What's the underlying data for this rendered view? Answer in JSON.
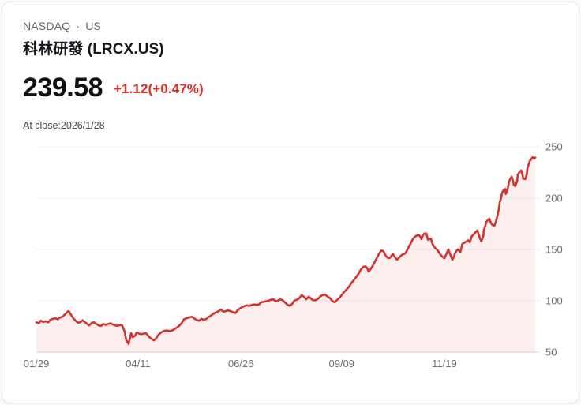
{
  "header": {
    "exchange": "NASDAQ",
    "separator": "·",
    "market": "US",
    "title": "科林研發 (LRCX.US)"
  },
  "quote": {
    "price": "239.58",
    "change": "+1.12(+0.47%)",
    "as_of": "At close:2026/1/28"
  },
  "colors": {
    "change_red": "#e02b20",
    "line_red": "#d7312c",
    "area_fill": "#d7312c",
    "area_fill_opacity": 0.08,
    "grid_line": "#e9ecef",
    "axis_line": "#d6dade",
    "axis_text": "#697077"
  },
  "chart_data": {
    "type": "area",
    "title": "LRCX.US 1-year price",
    "legend": false,
    "grid": true,
    "x_axis": {
      "labels": [
        "01/29",
        "04/11",
        "06/26",
        "09/09",
        "11/19"
      ],
      "positions": [
        0.0,
        0.204,
        0.41,
        0.612,
        0.818
      ]
    },
    "y_axis": {
      "range": [
        50,
        250
      ],
      "ticks": [
        50,
        100,
        150,
        200,
        250
      ],
      "side": "right"
    },
    "series": [
      {
        "name": "LRCX.US",
        "points": [
          [
            0.0,
            79
          ],
          [
            0.005,
            78
          ],
          [
            0.009,
            80.5
          ],
          [
            0.014,
            79.5
          ],
          [
            0.019,
            80
          ],
          [
            0.024,
            79
          ],
          [
            0.028,
            81.5
          ],
          [
            0.033,
            82.5
          ],
          [
            0.038,
            83
          ],
          [
            0.043,
            82
          ],
          [
            0.047,
            83.5
          ],
          [
            0.052,
            84.5
          ],
          [
            0.057,
            86.5
          ],
          [
            0.062,
            89
          ],
          [
            0.065,
            90
          ],
          [
            0.07,
            86
          ],
          [
            0.074,
            83
          ],
          [
            0.079,
            80.5
          ],
          [
            0.084,
            78.5
          ],
          [
            0.089,
            79.5
          ],
          [
            0.093,
            81
          ],
          [
            0.098,
            79
          ],
          [
            0.103,
            77
          ],
          [
            0.106,
            76
          ],
          [
            0.111,
            78.5
          ],
          [
            0.116,
            79
          ],
          [
            0.12,
            77.5
          ],
          [
            0.125,
            76
          ],
          [
            0.13,
            75.5
          ],
          [
            0.134,
            77.5
          ],
          [
            0.139,
            76.5
          ],
          [
            0.144,
            77.5
          ],
          [
            0.149,
            78
          ],
          [
            0.153,
            77
          ],
          [
            0.158,
            76
          ],
          [
            0.163,
            75.5
          ],
          [
            0.168,
            76.5
          ],
          [
            0.172,
            76
          ],
          [
            0.177,
            70
          ],
          [
            0.18,
            62
          ],
          [
            0.185,
            58
          ],
          [
            0.19,
            68.5
          ],
          [
            0.193,
            64.5
          ],
          [
            0.198,
            66
          ],
          [
            0.201,
            69
          ],
          [
            0.206,
            68
          ],
          [
            0.21,
            67.5
          ],
          [
            0.215,
            68
          ],
          [
            0.22,
            68.5
          ],
          [
            0.225,
            65.5
          ],
          [
            0.229,
            63.5
          ],
          [
            0.236,
            61.5
          ],
          [
            0.241,
            64
          ],
          [
            0.245,
            67
          ],
          [
            0.25,
            69
          ],
          [
            0.255,
            70.5
          ],
          [
            0.261,
            71
          ],
          [
            0.267,
            70.5
          ],
          [
            0.272,
            71
          ],
          [
            0.277,
            72.5
          ],
          [
            0.282,
            74
          ],
          [
            0.286,
            75.5
          ],
          [
            0.291,
            78
          ],
          [
            0.296,
            82
          ],
          [
            0.301,
            83
          ],
          [
            0.305,
            83.5
          ],
          [
            0.312,
            84.5
          ],
          [
            0.316,
            83
          ],
          [
            0.321,
            81.5
          ],
          [
            0.326,
            80.5
          ],
          [
            0.331,
            82.5
          ],
          [
            0.335,
            81.5
          ],
          [
            0.34,
            82
          ],
          [
            0.345,
            84
          ],
          [
            0.35,
            85.5
          ],
          [
            0.354,
            87
          ],
          [
            0.359,
            88.5
          ],
          [
            0.364,
            89.5
          ],
          [
            0.37,
            91.5
          ],
          [
            0.375,
            89.5
          ],
          [
            0.38,
            90
          ],
          [
            0.384,
            90.5
          ],
          [
            0.389,
            90
          ],
          [
            0.394,
            89
          ],
          [
            0.399,
            88
          ],
          [
            0.403,
            90.5
          ],
          [
            0.408,
            92.5
          ],
          [
            0.413,
            94
          ],
          [
            0.418,
            95
          ],
          [
            0.422,
            95.5
          ],
          [
            0.427,
            95
          ],
          [
            0.432,
            96
          ],
          [
            0.437,
            96.5
          ],
          [
            0.441,
            96
          ],
          [
            0.446,
            96.5
          ],
          [
            0.451,
            98.5
          ],
          [
            0.456,
            99
          ],
          [
            0.46,
            99.5
          ],
          [
            0.465,
            100
          ],
          [
            0.47,
            101
          ],
          [
            0.475,
            101.5
          ],
          [
            0.479,
            99.5
          ],
          [
            0.484,
            100
          ],
          [
            0.489,
            101.5
          ],
          [
            0.494,
            100.5
          ],
          [
            0.498,
            98.5
          ],
          [
            0.503,
            96.5
          ],
          [
            0.508,
            95
          ],
          [
            0.513,
            97
          ],
          [
            0.517,
            100
          ],
          [
            0.522,
            101
          ],
          [
            0.527,
            102.5
          ],
          [
            0.532,
            105.5
          ],
          [
            0.536,
            104
          ],
          [
            0.541,
            101.5
          ],
          [
            0.546,
            104
          ],
          [
            0.551,
            102
          ],
          [
            0.555,
            100.5
          ],
          [
            0.56,
            100.5
          ],
          [
            0.565,
            102
          ],
          [
            0.57,
            104.5
          ],
          [
            0.574,
            105.5
          ],
          [
            0.579,
            106
          ],
          [
            0.584,
            104
          ],
          [
            0.589,
            102.5
          ],
          [
            0.593,
            100
          ],
          [
            0.598,
            98.5
          ],
          [
            0.603,
            101
          ],
          [
            0.608,
            103
          ],
          [
            0.612,
            105.5
          ],
          [
            0.617,
            108.5
          ],
          [
            0.622,
            111
          ],
          [
            0.627,
            114
          ],
          [
            0.631,
            117
          ],
          [
            0.636,
            120
          ],
          [
            0.641,
            123
          ],
          [
            0.646,
            126.5
          ],
          [
            0.65,
            130
          ],
          [
            0.655,
            133
          ],
          [
            0.66,
            133.5
          ],
          [
            0.663,
            132
          ],
          [
            0.666,
            128.5
          ],
          [
            0.669,
            130
          ],
          [
            0.673,
            133
          ],
          [
            0.676,
            135.5
          ],
          [
            0.679,
            138.5
          ],
          [
            0.684,
            143
          ],
          [
            0.687,
            146
          ],
          [
            0.692,
            149
          ],
          [
            0.696,
            148
          ],
          [
            0.699,
            145
          ],
          [
            0.703,
            142.5
          ],
          [
            0.706,
            141.5
          ],
          [
            0.709,
            142
          ],
          [
            0.712,
            144
          ],
          [
            0.715,
            145.5
          ],
          [
            0.718,
            143
          ],
          [
            0.723,
            140
          ],
          [
            0.726,
            141.5
          ],
          [
            0.731,
            144
          ],
          [
            0.734,
            145
          ],
          [
            0.739,
            146
          ],
          [
            0.742,
            148
          ],
          [
            0.745,
            151
          ],
          [
            0.75,
            155.5
          ],
          [
            0.753,
            158.5
          ],
          [
            0.756,
            161
          ],
          [
            0.759,
            162.5
          ],
          [
            0.763,
            163.5
          ],
          [
            0.766,
            164.5
          ],
          [
            0.769,
            163
          ],
          [
            0.772,
            160
          ],
          [
            0.775,
            164
          ],
          [
            0.778,
            165.5
          ],
          [
            0.782,
            165.5
          ],
          [
            0.785,
            159.5
          ],
          [
            0.788,
            160
          ],
          [
            0.791,
            160.5
          ],
          [
            0.794,
            155.5
          ],
          [
            0.799,
            151.5
          ],
          [
            0.804,
            149.5
          ],
          [
            0.807,
            147.5
          ],
          [
            0.81,
            145
          ],
          [
            0.815,
            142.5
          ],
          [
            0.818,
            141.5
          ],
          [
            0.821,
            144.5
          ],
          [
            0.826,
            150
          ],
          [
            0.829,
            146
          ],
          [
            0.831,
            143.5
          ],
          [
            0.834,
            140
          ],
          [
            0.837,
            143
          ],
          [
            0.839,
            146
          ],
          [
            0.842,
            148.5
          ],
          [
            0.845,
            150
          ],
          [
            0.848,
            148.5
          ],
          [
            0.85,
            147.5
          ],
          [
            0.854,
            155.5
          ],
          [
            0.858,
            156.5
          ],
          [
            0.861,
            157.5
          ],
          [
            0.866,
            159
          ],
          [
            0.869,
            157
          ],
          [
            0.873,
            163
          ],
          [
            0.878,
            165.5
          ],
          [
            0.881,
            167
          ],
          [
            0.884,
            168.5
          ],
          [
            0.888,
            163
          ],
          [
            0.889,
            161
          ],
          [
            0.892,
            158
          ],
          [
            0.896,
            163
          ],
          [
            0.897,
            168.5
          ],
          [
            0.9,
            173
          ],
          [
            0.902,
            177
          ],
          [
            0.905,
            178.5
          ],
          [
            0.908,
            180
          ],
          [
            0.911,
            176
          ],
          [
            0.913,
            174.5
          ],
          [
            0.918,
            173
          ],
          [
            0.921,
            177
          ],
          [
            0.924,
            182.5
          ],
          [
            0.927,
            189
          ],
          [
            0.929,
            196
          ],
          [
            0.932,
            201
          ],
          [
            0.934,
            205.5
          ],
          [
            0.937,
            208
          ],
          [
            0.94,
            209
          ],
          [
            0.941,
            204
          ],
          [
            0.945,
            209
          ],
          [
            0.948,
            217
          ],
          [
            0.953,
            221
          ],
          [
            0.956,
            216
          ],
          [
            0.957,
            213
          ],
          [
            0.96,
            211.5
          ],
          [
            0.964,
            217
          ],
          [
            0.965,
            223
          ],
          [
            0.968,
            225
          ],
          [
            0.972,
            227
          ],
          [
            0.975,
            222
          ],
          [
            0.976,
            219
          ],
          [
            0.98,
            218.5
          ],
          [
            0.983,
            223
          ],
          [
            0.984,
            228.5
          ],
          [
            0.987,
            233
          ],
          [
            0.989,
            236
          ],
          [
            0.992,
            238
          ],
          [
            0.995,
            240
          ],
          [
            0.998,
            238.5
          ],
          [
            1.0,
            239.6
          ]
        ]
      }
    ]
  }
}
